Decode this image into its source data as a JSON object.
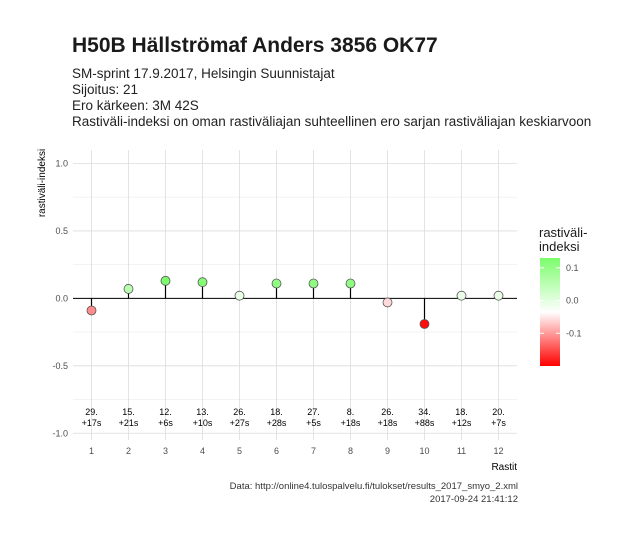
{
  "header": {
    "title": "H50B Hällströmaf Anders 3856 OK77",
    "subtitle_lines": [
      "SM-sprint 17.9.2017, Helsingin Suunnistajat",
      "Sijoitus: 21",
      "Ero kärkeen: 3M 42S",
      "Rastiväli-indeksi on oman rastiväliajan suhteellinen ero sarjan rastiväliajan keskiarvoon"
    ]
  },
  "chart_data": {
    "type": "scatter",
    "xlabel": "Rastit",
    "ylabel": "rastiväli-indeksi",
    "ylim": [
      -1.05,
      1.1
    ],
    "yticks": [
      1.0,
      0.5,
      0.0,
      -0.5,
      -1.0
    ],
    "ytick_labels": [
      "1.0",
      "0.5",
      "0.0",
      "-0.5",
      "-1.0"
    ],
    "x": [
      1,
      2,
      3,
      4,
      5,
      6,
      7,
      8,
      9,
      10,
      11,
      12
    ],
    "values": [
      -0.09,
      0.07,
      0.13,
      0.12,
      0.02,
      0.11,
      0.11,
      0.11,
      -0.03,
      -0.19,
      0.02,
      0.02
    ],
    "point_labels": [
      [
        "29.",
        "+17s"
      ],
      [
        "15.",
        "+21s"
      ],
      [
        "12.",
        "+6s"
      ],
      [
        "13.",
        "+10s"
      ],
      [
        "26.",
        "+27s"
      ],
      [
        "18.",
        "+28s"
      ],
      [
        "27.",
        "+5s"
      ],
      [
        "8.",
        "+18s"
      ],
      [
        "26.",
        "+18s"
      ],
      [
        "34.",
        "+88s"
      ],
      [
        "18.",
        "+12s"
      ],
      [
        "20.",
        "+7s"
      ]
    ],
    "grid": true,
    "legend": {
      "title_lines": [
        "rastiväli-",
        "indeksi"
      ],
      "ticks": [
        0.1,
        0.0,
        -0.1
      ],
      "tick_labels": [
        "0.1",
        "0.0",
        "-0.1"
      ],
      "range": [
        -0.2,
        0.13
      ],
      "placement": "right"
    },
    "colors": {
      "high": "#7cfc6c",
      "mid": "#ffffff",
      "low": "#ff0000"
    }
  },
  "footer": {
    "source": "Data: http://online4.tulospalvelu.fi/tulokset/results_2017_smyo_2.xml",
    "timestamp": "2017-09-24 21:41:12"
  }
}
